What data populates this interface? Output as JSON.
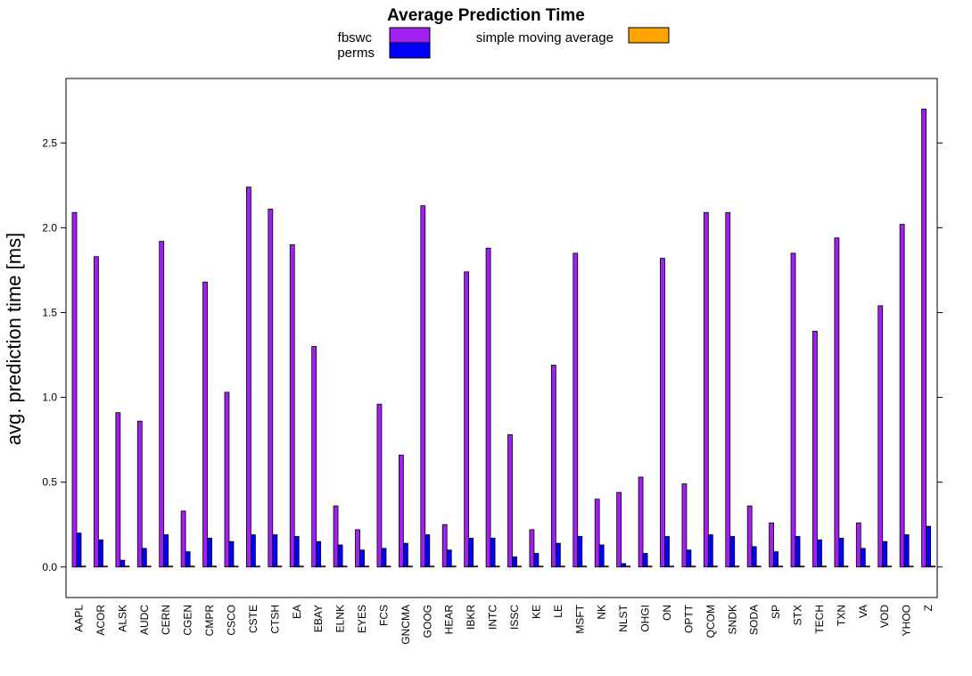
{
  "chart_data": {
    "type": "bar",
    "title": "Average Prediction Time",
    "xlabel": "",
    "ylabel": "avg. prediction time [ms]",
    "ylim": [
      -0.18,
      2.88
    ],
    "yticks": [
      "0.0",
      "0.5",
      "1.0",
      "1.5",
      "2.0",
      "2.5"
    ],
    "grid": false,
    "legend_position": "top",
    "categories": [
      "AAPL",
      "ACOR",
      "ALSK",
      "AUDC",
      "CERN",
      "CGEN",
      "CMPR",
      "CSCO",
      "CSTE",
      "CTSH",
      "EA",
      "EBAY",
      "ELNK",
      "EYES",
      "FCS",
      "GNCMA",
      "GOOG",
      "HEAR",
      "IBKR",
      "INTC",
      "ISSC",
      "KE",
      "LE",
      "MSFT",
      "NK",
      "NLST",
      "OHGI",
      "ON",
      "OPTT",
      "QCOM",
      "SNDK",
      "SODA",
      "SP",
      "STX",
      "TECH",
      "TXN",
      "VA",
      "VOD",
      "YHOO",
      "Z"
    ],
    "series": [
      {
        "name": "fbswc",
        "color": "#a020f0",
        "values": [
          2.09,
          1.83,
          0.91,
          0.86,
          1.92,
          0.33,
          1.68,
          1.03,
          2.24,
          2.11,
          1.9,
          1.3,
          0.36,
          0.22,
          0.96,
          0.66,
          2.13,
          0.25,
          1.74,
          1.88,
          0.78,
          0.22,
          1.19,
          1.85,
          0.4,
          0.44,
          0.53,
          1.82,
          0.49,
          2.09,
          2.09,
          0.36,
          0.26,
          1.85,
          1.39,
          1.94,
          0.26,
          1.54,
          2.02,
          2.7
        ]
      },
      {
        "name": "perms",
        "color": "#0000ff",
        "values": [
          0.2,
          0.16,
          0.04,
          0.11,
          0.19,
          0.09,
          0.17,
          0.15,
          0.19,
          0.19,
          0.18,
          0.15,
          0.13,
          0.1,
          0.11,
          0.14,
          0.19,
          0.1,
          0.17,
          0.17,
          0.06,
          0.08,
          0.14,
          0.18,
          0.13,
          0.02,
          0.08,
          0.18,
          0.1,
          0.19,
          0.18,
          0.12,
          0.09,
          0.18,
          0.16,
          0.17,
          0.11,
          0.15,
          0.19,
          0.24
        ]
      },
      {
        "name": "simple moving average",
        "color": "#ffa500",
        "values": [
          0.005,
          0.005,
          0.005,
          0.005,
          0.005,
          0.005,
          0.005,
          0.005,
          0.005,
          0.005,
          0.005,
          0.005,
          0.005,
          0.005,
          0.005,
          0.005,
          0.005,
          0.005,
          0.005,
          0.005,
          0.005,
          0.005,
          0.005,
          0.005,
          0.005,
          0.005,
          0.005,
          0.005,
          0.005,
          0.005,
          0.005,
          0.005,
          0.005,
          0.005,
          0.005,
          0.005,
          0.005,
          0.005,
          0.005,
          0.005
        ]
      }
    ]
  }
}
